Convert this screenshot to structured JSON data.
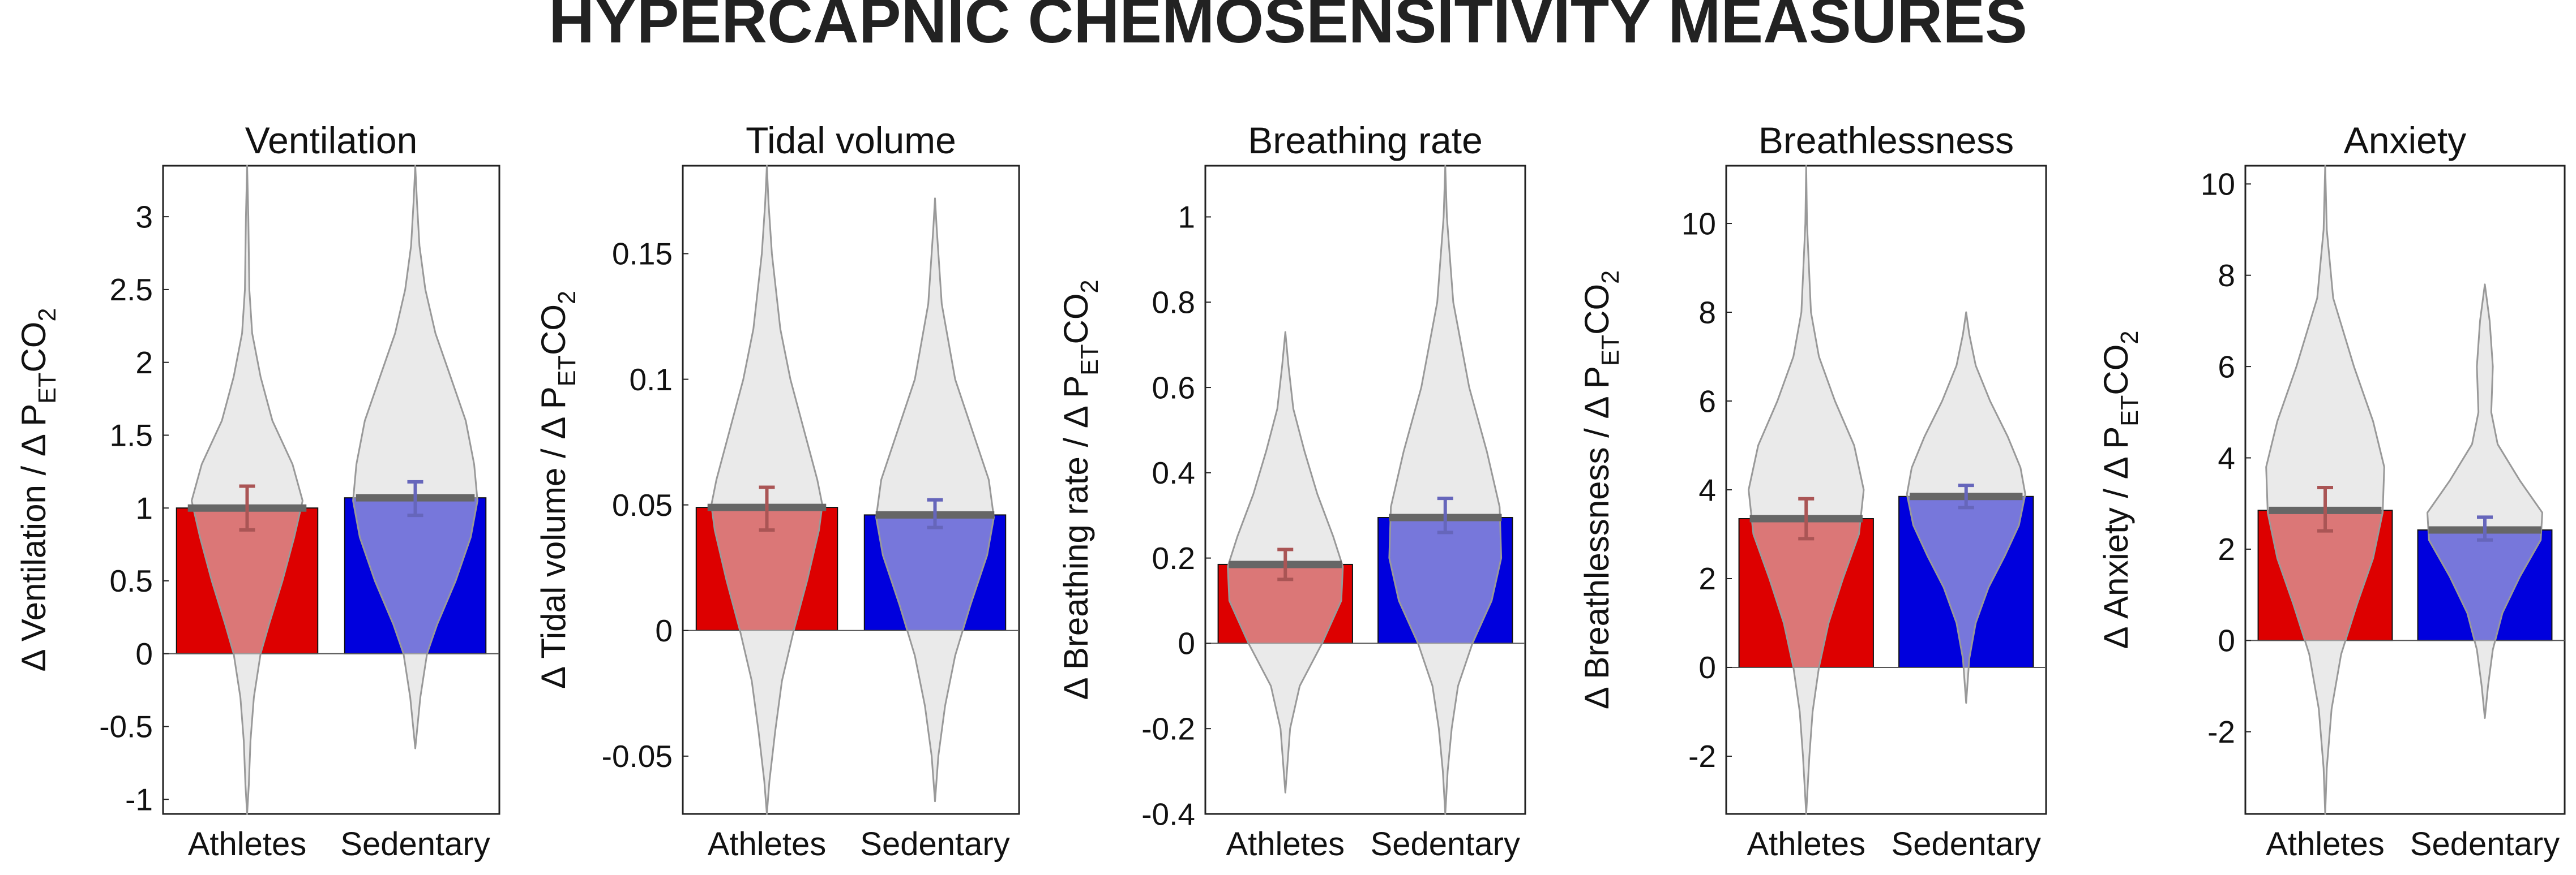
{
  "figure_title": "HYPERCAPNIC CHEMOSENSITIVITY MEASURES",
  "colors": {
    "athletes": "#dd0000",
    "sedentary": "#0000dd",
    "violin_fill": "#d9d9d9",
    "violin_edge": "#999999",
    "mean_line": "#666666",
    "athletes_error": "#aa5555",
    "sedentary_error": "#6666bb"
  },
  "chart_data": [
    {
      "type": "bar",
      "title": "Ventilation",
      "ylabel": "Δ Ventilation / Δ P_ET CO_2",
      "ylabel_parts": {
        "prefix": "Δ Ventilation / Δ P",
        "sub1": "ET",
        "mid": "CO",
        "sub2": "2"
      },
      "ylim": [
        -1.1,
        3.35
      ],
      "yticks": [
        -1,
        -0.5,
        0,
        0.5,
        1,
        1.5,
        2,
        2.5,
        3
      ],
      "ytick_labels": [
        "-1",
        "-0.5",
        "0",
        "0.5",
        "1",
        "1.5",
        "2",
        "2.5",
        "3"
      ],
      "categories": [
        "Athletes",
        "Sedentary"
      ],
      "series": [
        {
          "name": "Athletes",
          "value": 1.0,
          "err_low": 0.85,
          "err_high": 1.15,
          "violin": [
            [
              3.35,
              0
            ],
            [
              3.0,
              0.007
            ],
            [
              2.5,
              0.013
            ],
            [
              2.2,
              0.03
            ],
            [
              1.9,
              0.08
            ],
            [
              1.6,
              0.15
            ],
            [
              1.3,
              0.27
            ],
            [
              1.05,
              0.33
            ],
            [
              0.8,
              0.28
            ],
            [
              0.5,
              0.21
            ],
            [
              0.2,
              0.13
            ],
            [
              0.0,
              0.08
            ],
            [
              -0.3,
              0.04
            ],
            [
              -0.6,
              0.02
            ],
            [
              -0.9,
              0.01
            ],
            [
              -1.1,
              0
            ]
          ]
        },
        {
          "name": "Sedentary",
          "value": 1.07,
          "err_low": 0.95,
          "err_high": 1.18,
          "violin": [
            [
              3.35,
              0
            ],
            [
              3.1,
              0.01
            ],
            [
              2.8,
              0.025
            ],
            [
              2.5,
              0.06
            ],
            [
              2.2,
              0.12
            ],
            [
              1.9,
              0.21
            ],
            [
              1.6,
              0.3
            ],
            [
              1.3,
              0.35
            ],
            [
              1.05,
              0.37
            ],
            [
              0.8,
              0.33
            ],
            [
              0.5,
              0.24
            ],
            [
              0.2,
              0.13
            ],
            [
              0.0,
              0.07
            ],
            [
              -0.3,
              0.03
            ],
            [
              -0.65,
              0
            ]
          ]
        }
      ]
    },
    {
      "type": "bar",
      "title": "Tidal volume",
      "ylabel": "Δ Tidal volume / Δ P_ET CO_2",
      "ylabel_parts": {
        "prefix": "Δ Tidal volume / Δ P",
        "sub1": "ET",
        "mid": "CO",
        "sub2": "2"
      },
      "ylim": [
        -0.073,
        0.185
      ],
      "yticks": [
        -0.05,
        0,
        0.05,
        0.1,
        0.15
      ],
      "ytick_labels": [
        "-0.05",
        "0",
        "0.05",
        "0.1",
        "0.15"
      ],
      "categories": [
        "Athletes",
        "Sedentary"
      ],
      "series": [
        {
          "name": "Athletes",
          "value": 0.049,
          "err_low": 0.04,
          "err_high": 0.057,
          "violin": [
            [
              0.185,
              0
            ],
            [
              0.17,
              0.01
            ],
            [
              0.15,
              0.03
            ],
            [
              0.12,
              0.08
            ],
            [
              0.1,
              0.14
            ],
            [
              0.08,
              0.22
            ],
            [
              0.06,
              0.3
            ],
            [
              0.05,
              0.33
            ],
            [
              0.04,
              0.31
            ],
            [
              0.02,
              0.24
            ],
            [
              0.0,
              0.16
            ],
            [
              -0.02,
              0.09
            ],
            [
              -0.04,
              0.05
            ],
            [
              -0.06,
              0.015
            ],
            [
              -0.073,
              0
            ]
          ]
        },
        {
          "name": "Sedentary",
          "value": 0.046,
          "err_low": 0.041,
          "err_high": 0.052,
          "violin": [
            [
              0.172,
              0
            ],
            [
              0.16,
              0.01
            ],
            [
              0.13,
              0.04
            ],
            [
              0.1,
              0.12
            ],
            [
              0.08,
              0.22
            ],
            [
              0.06,
              0.32
            ],
            [
              0.045,
              0.35
            ],
            [
              0.03,
              0.31
            ],
            [
              0.01,
              0.21
            ],
            [
              -0.01,
              0.12
            ],
            [
              -0.03,
              0.06
            ],
            [
              -0.05,
              0.02
            ],
            [
              -0.068,
              0
            ]
          ]
        }
      ]
    },
    {
      "type": "bar",
      "title": "Breathing rate",
      "ylabel": "Δ Breathing rate / Δ P_ET CO_2",
      "ylabel_parts": {
        "prefix": "Δ Breathing rate / Δ P",
        "sub1": "ET",
        "mid": "CO",
        "sub2": "2"
      },
      "ylim": [
        -0.4,
        1.12
      ],
      "yticks": [
        -0.4,
        -0.2,
        0,
        0.2,
        0.4,
        0.6,
        0.8,
        1
      ],
      "ytick_labels": [
        "-0.4",
        "-0.2",
        "0",
        "0.2",
        "0.4",
        "0.6",
        "0.8",
        "1"
      ],
      "categories": [
        "Athletes",
        "Sedentary"
      ],
      "series": [
        {
          "name": "Athletes",
          "value": 0.185,
          "err_low": 0.15,
          "err_high": 0.22,
          "violin": [
            [
              0.73,
              0
            ],
            [
              0.65,
              0.02
            ],
            [
              0.55,
              0.05
            ],
            [
              0.45,
              0.12
            ],
            [
              0.35,
              0.2
            ],
            [
              0.25,
              0.3
            ],
            [
              0.18,
              0.36
            ],
            [
              0.1,
              0.35
            ],
            [
              0.0,
              0.23
            ],
            [
              -0.1,
              0.09
            ],
            [
              -0.2,
              0.03
            ],
            [
              -0.35,
              0
            ]
          ]
        },
        {
          "name": "Sedentary",
          "value": 0.295,
          "err_low": 0.26,
          "err_high": 0.34,
          "violin": [
            [
              1.12,
              0
            ],
            [
              1.0,
              0.01
            ],
            [
              0.8,
              0.05
            ],
            [
              0.6,
              0.15
            ],
            [
              0.45,
              0.26
            ],
            [
              0.32,
              0.34
            ],
            [
              0.2,
              0.35
            ],
            [
              0.1,
              0.29
            ],
            [
              0.0,
              0.17
            ],
            [
              -0.1,
              0.08
            ],
            [
              -0.2,
              0.04
            ],
            [
              -0.3,
              0.015
            ],
            [
              -0.4,
              0
            ]
          ]
        }
      ]
    },
    {
      "type": "bar",
      "title": "Breathlessness",
      "ylabel": "Δ Breathlessness / Δ P_ET CO_2",
      "ylabel_parts": {
        "prefix": "Δ Breathlessness / Δ P",
        "sub1": "ET",
        "mid": "CO",
        "sub2": "2"
      },
      "ylim": [
        -3.3,
        11.3
      ],
      "yticks": [
        -2,
        0,
        2,
        4,
        6,
        8,
        10
      ],
      "ytick_labels": [
        "-2",
        "0",
        "2",
        "4",
        "6",
        "8",
        "10"
      ],
      "categories": [
        "Athletes",
        "Sedentary"
      ],
      "series": [
        {
          "name": "Athletes",
          "value": 3.35,
          "err_low": 2.9,
          "err_high": 3.8,
          "violin": [
            [
              11.3,
              0
            ],
            [
              10,
              0.005
            ],
            [
              8,
              0.03
            ],
            [
              7,
              0.08
            ],
            [
              6,
              0.18
            ],
            [
              5,
              0.3
            ],
            [
              4,
              0.36
            ],
            [
              3,
              0.33
            ],
            [
              2,
              0.23
            ],
            [
              1,
              0.14
            ],
            [
              0,
              0.08
            ],
            [
              -1,
              0.04
            ],
            [
              -2,
              0.02
            ],
            [
              -3.3,
              0
            ]
          ]
        },
        {
          "name": "Sedentary",
          "value": 3.85,
          "err_low": 3.6,
          "err_high": 4.1,
          "violin": [
            [
              8.0,
              0
            ],
            [
              7.5,
              0.02
            ],
            [
              6.8,
              0.06
            ],
            [
              6.0,
              0.15
            ],
            [
              5.2,
              0.26
            ],
            [
              4.5,
              0.34
            ],
            [
              3.9,
              0.37
            ],
            [
              3.2,
              0.33
            ],
            [
              2.5,
              0.24
            ],
            [
              1.8,
              0.14
            ],
            [
              1.0,
              0.06
            ],
            [
              0.2,
              0.02
            ],
            [
              -0.8,
              0
            ]
          ]
        }
      ]
    },
    {
      "type": "bar",
      "title": "Anxiety",
      "ylabel": "Δ Anxiety / Δ P_ET CO_2",
      "ylabel_parts": {
        "prefix": "Δ Anxiety / Δ P",
        "sub1": "ET",
        "mid": "CO",
        "sub2": "2"
      },
      "ylim": [
        -3.8,
        10.4
      ],
      "yticks": [
        -2,
        0,
        2,
        4,
        6,
        8,
        10
      ],
      "ytick_labels": [
        "-2",
        "0",
        "2",
        "4",
        "6",
        "8",
        "10"
      ],
      "categories": [
        "Athletes",
        "Sedentary"
      ],
      "series": [
        {
          "name": "Athletes",
          "value": 2.85,
          "err_low": 2.4,
          "err_high": 3.35,
          "violin": [
            [
              10.4,
              0
            ],
            [
              9,
              0.01
            ],
            [
              7.5,
              0.05
            ],
            [
              6,
              0.18
            ],
            [
              4.8,
              0.3
            ],
            [
              3.8,
              0.37
            ],
            [
              2.8,
              0.36
            ],
            [
              1.8,
              0.3
            ],
            [
              0.8,
              0.2
            ],
            [
              -0.3,
              0.1
            ],
            [
              -1.5,
              0.04
            ],
            [
              -2.8,
              0.01
            ],
            [
              -3.8,
              0
            ]
          ]
        },
        {
          "name": "Sedentary",
          "value": 2.42,
          "err_low": 2.2,
          "err_high": 2.7,
          "violin": [
            [
              7.8,
              0
            ],
            [
              7.0,
              0.03
            ],
            [
              6.0,
              0.05
            ],
            [
              5.0,
              0.04
            ],
            [
              4.3,
              0.08
            ],
            [
              3.5,
              0.22
            ],
            [
              2.8,
              0.36
            ],
            [
              2.2,
              0.35
            ],
            [
              1.4,
              0.22
            ],
            [
              0.6,
              0.11
            ],
            [
              -0.2,
              0.05
            ],
            [
              -1.0,
              0.02
            ],
            [
              -1.7,
              0
            ]
          ]
        }
      ]
    }
  ]
}
